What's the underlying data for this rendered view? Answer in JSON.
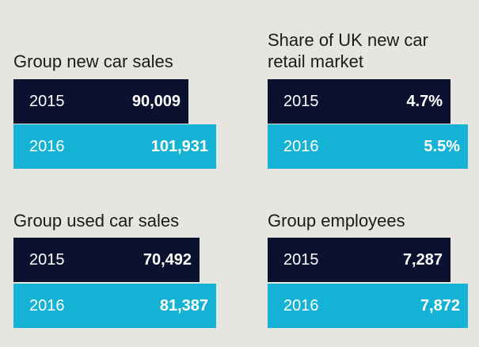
{
  "colors": {
    "background": "#e6e5df",
    "bar_2015": "#0b1230",
    "bar_2016": "#14b3d6",
    "text_dark": "#1b1b1b",
    "text_light": "#ffffff"
  },
  "chart_data": [
    {
      "type": "bar",
      "title": "Group new car sales",
      "categories": [
        "2015",
        "2016"
      ],
      "values": [
        90009,
        101931
      ],
      "labels": [
        "90,009",
        "101,931"
      ]
    },
    {
      "type": "bar",
      "title": "Share of UK new car retail market",
      "title_lines": [
        "Share of UK new car",
        "retail market"
      ],
      "categories": [
        "2015",
        "2016"
      ],
      "values": [
        4.7,
        5.5
      ],
      "unit": "%",
      "labels": [
        "4.7%",
        "5.5%"
      ]
    },
    {
      "type": "bar",
      "title": "Group used car sales",
      "categories": [
        "2015",
        "2016"
      ],
      "values": [
        70492,
        81387
      ],
      "labels": [
        "70,492",
        "81,387"
      ]
    },
    {
      "type": "bar",
      "title": "Group employees",
      "categories": [
        "2015",
        "2016"
      ],
      "values": [
        7287,
        7872
      ],
      "labels": [
        "7,287",
        "7,872"
      ]
    }
  ]
}
